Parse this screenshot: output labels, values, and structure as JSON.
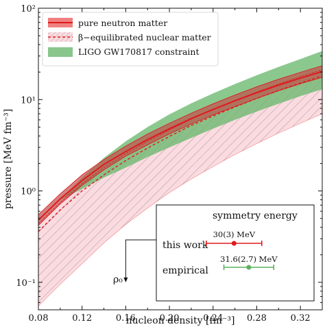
{
  "chart_data": {
    "type": "area",
    "xlabel": "nucleon density [fm⁻³]",
    "ylabel": "pressure [MeV fm⁻³]",
    "xlim": [
      0.08,
      0.34
    ],
    "ylim": [
      0.05,
      100
    ],
    "yscale": "log",
    "xticks": [
      0.08,
      0.12,
      0.16,
      0.2,
      0.24,
      0.28,
      0.32
    ],
    "xtick_labels": [
      "0.08",
      "0.12",
      "0.16",
      "0.20",
      "0.24",
      "0.28",
      "0.32"
    ],
    "yticks": [
      0.1,
      1,
      10,
      100
    ],
    "ytick_labels": [
      "10⁻¹",
      "10⁰",
      "10¹",
      "10²"
    ],
    "grid": false,
    "legend_position": "top-left",
    "colors": {
      "pnm_band": "#f08080",
      "pnm_band_dark": "#c0504d",
      "pnm_line": "#e0191c",
      "beta_band": "#fbdbe0",
      "beta_hatch": "#8a8a8a",
      "ligo_band": "#6ab86e",
      "empirical": "#5cb15f"
    },
    "series": [
      {
        "name": "pure neutron matter",
        "x": [
          0.08,
          0.1,
          0.12,
          0.14,
          0.16,
          0.18,
          0.2,
          0.22,
          0.24,
          0.26,
          0.28,
          0.3,
          0.32,
          0.34
        ],
        "y_lower": [
          0.42,
          0.72,
          1.15,
          1.7,
          2.4,
          3.2,
          4.2,
          5.4,
          6.8,
          8.4,
          10.3,
          12.5,
          14.9,
          17.5
        ],
        "y_center": [
          0.48,
          0.82,
          1.3,
          1.95,
          2.7,
          3.65,
          4.8,
          6.2,
          7.8,
          9.7,
          11.9,
          14.4,
          17.2,
          20.3
        ],
        "y_upper": [
          0.55,
          0.93,
          1.5,
          2.2,
          3.1,
          4.2,
          5.5,
          7.1,
          9.0,
          11.2,
          13.8,
          16.7,
          19.9,
          23.5
        ]
      },
      {
        "name": "β−equilibrated nuclear matter",
        "x": [
          0.08,
          0.1,
          0.12,
          0.14,
          0.16,
          0.18,
          0.2,
          0.22,
          0.24,
          0.26,
          0.28,
          0.3,
          0.32,
          0.34
        ],
        "y_lower": [
          0.055,
          0.095,
          0.16,
          0.27,
          0.43,
          0.65,
          0.96,
          1.35,
          1.85,
          2.5,
          3.3,
          4.3,
          5.5,
          7.0
        ],
        "y_center": [
          0.36,
          0.62,
          1.0,
          1.5,
          2.15,
          2.95,
          3.95,
          5.2,
          6.6,
          8.3,
          10.3,
          12.6,
          15.2,
          18.1
        ],
        "y_upper": [
          0.44,
          0.75,
          1.2,
          1.8,
          2.55,
          3.5,
          4.65,
          6.1,
          7.8,
          9.8,
          12.1,
          14.8,
          17.9,
          21.2
        ]
      },
      {
        "name": "LIGO GW170817 constraint",
        "x": [
          0.1,
          0.12,
          0.14,
          0.16,
          0.18,
          0.2,
          0.22,
          0.24,
          0.26,
          0.28,
          0.3,
          0.32,
          0.34
        ],
        "y_lower": [
          0.8,
          1.05,
          1.4,
          1.8,
          2.35,
          3.0,
          3.8,
          4.8,
          6.0,
          7.4,
          9.0,
          10.9,
          13.0
        ],
        "y_upper": [
          0.8,
          1.4,
          2.3,
          3.5,
          5.0,
          6.9,
          9.1,
          11.7,
          14.8,
          18.5,
          22.8,
          27.8,
          34.0
        ]
      }
    ],
    "annotations": {
      "rho0": {
        "label": "ρ₀",
        "x": 0.16,
        "y": 0.1
      },
      "inset": {
        "title": "symmetry energy",
        "rows": [
          {
            "label": "this work",
            "value_label": "30(3) MeV",
            "value": 30,
            "error": 3
          },
          {
            "label": "empirical",
            "value_label": "31.6(2.7) MeV",
            "value": 31.6,
            "error": 2.7
          }
        ]
      }
    }
  }
}
